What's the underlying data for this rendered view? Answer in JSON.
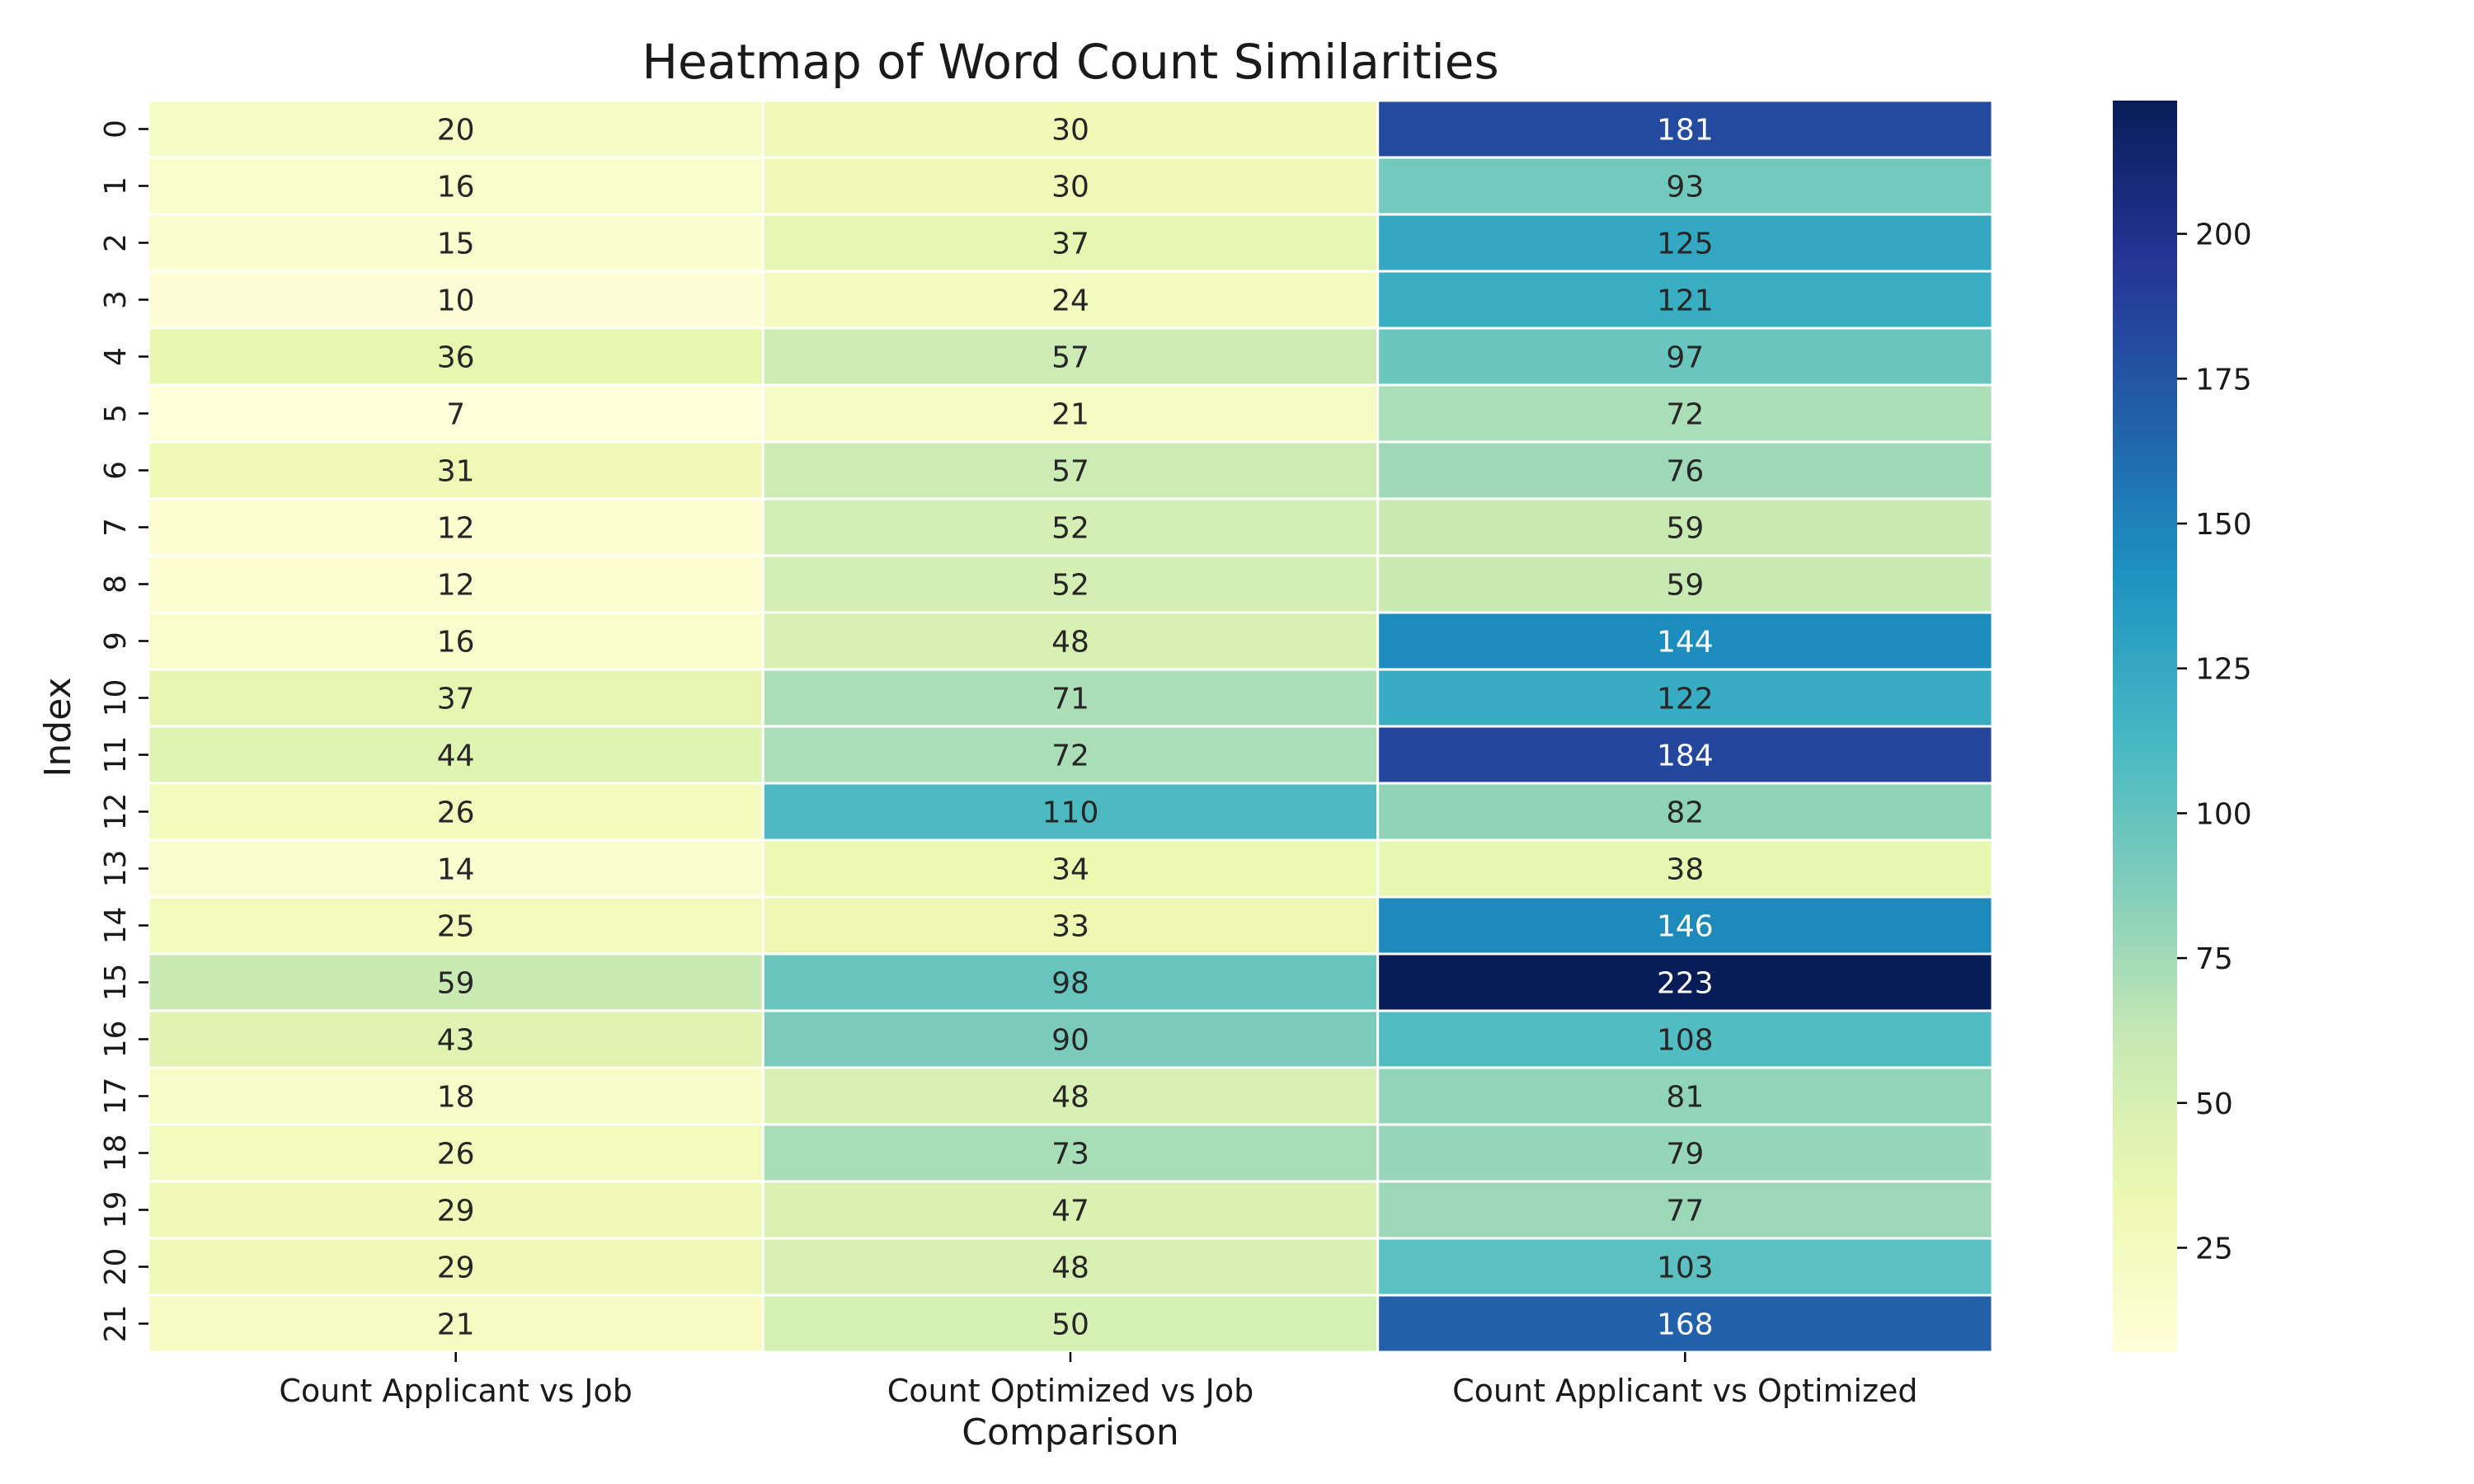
{
  "chart_data": {
    "type": "heatmap",
    "title": "Heatmap of Word Count Similarities",
    "xlabel": "Comparison",
    "ylabel": "Index",
    "columns": [
      "Count Applicant vs Job",
      "Count Optimized vs Job",
      "Count Applicant vs Optimized"
    ],
    "rows": [
      "0",
      "1",
      "2",
      "3",
      "4",
      "5",
      "6",
      "7",
      "8",
      "9",
      "10",
      "11",
      "12",
      "13",
      "14",
      "15",
      "16",
      "17",
      "18",
      "19",
      "20",
      "21"
    ],
    "values": [
      [
        20,
        30,
        181
      ],
      [
        16,
        30,
        93
      ],
      [
        15,
        37,
        125
      ],
      [
        10,
        24,
        121
      ],
      [
        36,
        57,
        97
      ],
      [
        7,
        21,
        72
      ],
      [
        31,
        57,
        76
      ],
      [
        12,
        52,
        59
      ],
      [
        12,
        52,
        59
      ],
      [
        16,
        48,
        144
      ],
      [
        37,
        71,
        122
      ],
      [
        44,
        72,
        184
      ],
      [
        26,
        110,
        82
      ],
      [
        14,
        34,
        38
      ],
      [
        25,
        33,
        146
      ],
      [
        59,
        98,
        223
      ],
      [
        43,
        90,
        108
      ],
      [
        18,
        48,
        81
      ],
      [
        26,
        73,
        79
      ],
      [
        29,
        47,
        77
      ],
      [
        29,
        48,
        103
      ],
      [
        21,
        50,
        168
      ]
    ],
    "colormap": "YlGnBu",
    "color_range": [
      7,
      223
    ],
    "colorbar_ticks": [
      25,
      50,
      75,
      100,
      125,
      150,
      175,
      200
    ],
    "grid": false,
    "legend": "colorbar-right"
  }
}
